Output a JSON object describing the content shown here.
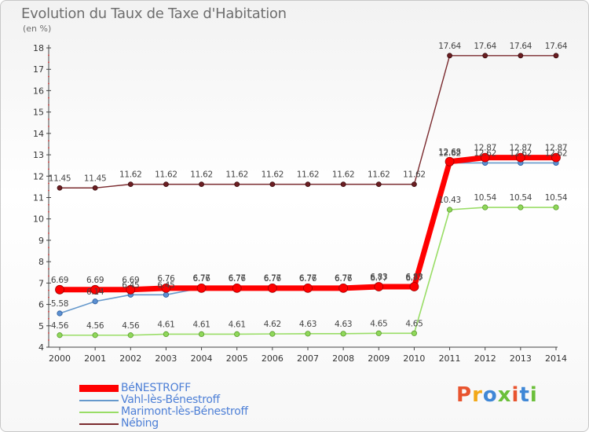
{
  "header": {
    "title": "Evolution du Taux de Taxe d'Habitation",
    "unit": "(en %)"
  },
  "logo": {
    "text": "Proxiti",
    "colors": [
      "#e8542f",
      "#f2a818",
      "#3f87d6",
      "#6bbf3a",
      "#e8542f",
      "#3f87d6",
      "#6bbf3a"
    ]
  },
  "chart_data": {
    "type": "line",
    "title": "Evolution du Taux de Taxe d'Habitation",
    "ylabel": "(en %)",
    "xlabel": "",
    "x": [
      2000,
      2001,
      2002,
      2003,
      2004,
      2005,
      2006,
      2007,
      2008,
      2009,
      2010,
      2011,
      2012,
      2013,
      2014
    ],
    "ylim": [
      4,
      18
    ],
    "yticks": [
      4,
      5,
      6,
      7,
      8,
      9,
      10,
      11,
      12,
      13,
      14,
      15,
      16,
      17,
      18
    ],
    "grid": false,
    "legend_position": "bottom-left",
    "series": [
      {
        "name": "BéNESTROFF",
        "color": "#ff0000",
        "values": [
          6.69,
          6.69,
          6.69,
          6.76,
          6.76,
          6.76,
          6.76,
          6.76,
          6.76,
          6.83,
          6.83,
          12.68,
          12.87,
          12.87,
          12.87
        ],
        "labels": [
          "6.69",
          "6.69",
          "6.69",
          "6.76",
          "6.76",
          "6.76",
          "6.76",
          "6.76",
          "6.76",
          "6.83",
          "6.83",
          "12.68",
          "12.87",
          "12.87",
          "12.87"
        ]
      },
      {
        "name": "Vahl-lès-Bénestroff",
        "color": "#6699cc",
        "values": [
          5.58,
          6.14,
          6.45,
          6.45,
          6.77,
          6.77,
          6.77,
          6.77,
          6.77,
          6.77,
          6.77,
          12.62,
          12.62,
          12.62,
          12.62
        ],
        "labels": [
          "5.58",
          "6.14",
          "6.45",
          "6.45",
          "6.77",
          "6.77",
          "6.77",
          "6.77",
          "6.77",
          "6.77",
          "6.77",
          "12.62",
          "12.62",
          "12.62",
          "12.62"
        ]
      },
      {
        "name": "Marimont-lès-Bénestroff",
        "color": "#99dd66",
        "values": [
          4.56,
          4.56,
          4.56,
          4.61,
          4.61,
          4.61,
          4.62,
          4.63,
          4.63,
          4.65,
          4.65,
          10.43,
          10.54,
          10.54,
          10.54
        ],
        "labels": [
          "4.56",
          "4.56",
          "4.56",
          "4.61",
          "4.61",
          "4.61",
          "4.62",
          "4.63",
          "4.63",
          "4.65",
          "4.65",
          "10.43",
          "10.54",
          "10.54",
          "10.54"
        ]
      },
      {
        "name": "Nébing",
        "color": "#7a2a2e",
        "values": [
          11.45,
          11.45,
          11.62,
          11.62,
          11.62,
          11.62,
          11.62,
          11.62,
          11.62,
          11.62,
          11.62,
          17.64,
          17.64,
          17.64,
          17.64
        ],
        "labels": [
          "11.45",
          "11.45",
          "11.62",
          "11.62",
          "11.62",
          "11.62",
          "11.62",
          "11.62",
          "11.62",
          "11.62",
          "11.62",
          "17.64",
          "17.64",
          "17.64",
          "17.64"
        ]
      }
    ]
  }
}
